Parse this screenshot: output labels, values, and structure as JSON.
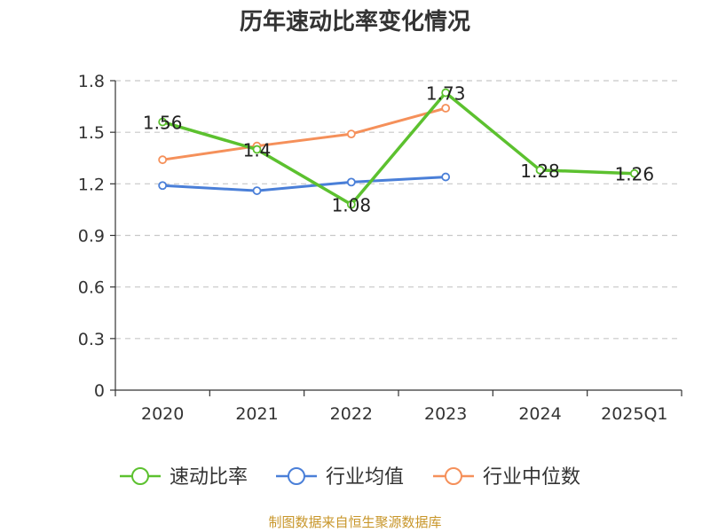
{
  "chart_data": {
    "type": "line",
    "title": "历年速动比率变化情况",
    "categories": [
      "2020",
      "2021",
      "2022",
      "2023",
      "2024",
      "2025Q1"
    ],
    "ylim": [
      0,
      1.8
    ],
    "yticks": [
      "0",
      "0.3",
      "0.6",
      "0.9",
      "1.2",
      "1.5",
      "1.8"
    ],
    "grid": true,
    "legend_position": "bottom",
    "series": [
      {
        "name": "速动比率",
        "color": "#5cc12f",
        "values": [
          1.56,
          1.4,
          1.08,
          1.73,
          1.28,
          1.26
        ],
        "labels": [
          "1.56",
          "1.4",
          "1.08",
          "1.73",
          "1.28",
          "1.26"
        ]
      },
      {
        "name": "行业均值",
        "color": "#4a7fd8",
        "values": [
          1.19,
          1.16,
          1.21,
          1.24,
          null,
          null
        ]
      },
      {
        "name": "行业中位数",
        "color": "#f5905a",
        "values": [
          1.34,
          1.42,
          1.49,
          1.64,
          null,
          null
        ]
      }
    ]
  },
  "footer": {
    "source": "制图数据来自恒生聚源数据库"
  }
}
